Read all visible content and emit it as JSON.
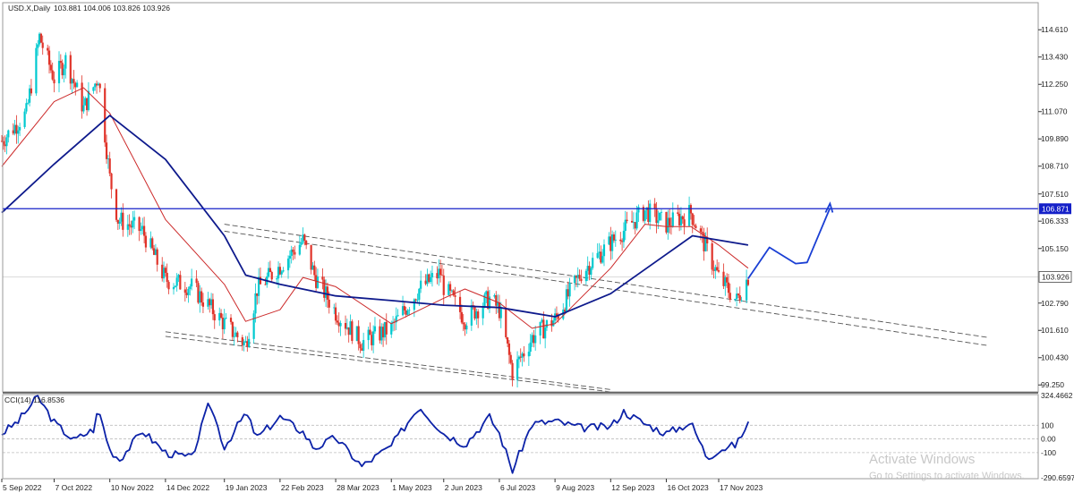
{
  "header": {
    "symbol": "USD.X,Daily",
    "ohlc": "103.881 104.006 103.826 103.926"
  },
  "indicator": {
    "label": "CCI(14) 116.8536",
    "scale": [
      "324.4662",
      "100",
      "0.00",
      "-100",
      "-290.6597"
    ]
  },
  "watermark": {
    "line1": "Activate Windows",
    "line2": "Go to Settings to activate Windows."
  },
  "colors": {
    "bull_candle": "#00c9cf",
    "bear_candle": "#e0342a",
    "ma_slow": "#0e1a8c",
    "ma_fast": "#cc2a2a",
    "resistance": "#1420c8",
    "cci": "#0c22a8",
    "projection": "#1a3fd4",
    "channel": "#555555"
  },
  "chart_data": [
    {
      "type": "candlestick",
      "title": "USD.X,Daily",
      "y_ticks": [
        "114.610",
        "113.430",
        "112.250",
        "111.070",
        "109.890",
        "108.710",
        "107.510",
        "106.333",
        "105.150",
        "103.926",
        "102.790",
        "101.610",
        "100.430",
        "99.250"
      ],
      "x_ticks": [
        "5 Sep 2022",
        "7 Oct 2022",
        "10 Nov 2022",
        "14 Dec 2022",
        "19 Jan 2023",
        "22 Feb 2023",
        "28 Mar 2023",
        "1 May 2023",
        "2 Jun 2023",
        "6 Jul 2023",
        "9 Aug 2023",
        "12 Sep 2023",
        "16 Oct 2023",
        "17 Nov 2023"
      ],
      "ylim": [
        98.95,
        115.2
      ],
      "last_price": 103.926,
      "resistance_level": 106.871,
      "close_path": [
        [
          "5 Sep 2022",
          109.8
        ],
        [
          "20 Sep 2022",
          111.0
        ],
        [
          "28 Sep 2022",
          114.3
        ],
        [
          "7 Oct 2022",
          112.5
        ],
        [
          "14 Oct 2022",
          113.3
        ],
        [
          "25 Oct 2022",
          111.2
        ],
        [
          "3 Nov 2022",
          112.6
        ],
        [
          "10 Nov 2022",
          108.2
        ],
        [
          "15 Nov 2022",
          106.4
        ],
        [
          "30 Nov 2022",
          105.9
        ],
        [
          "14 Dec 2022",
          103.8
        ],
        [
          "30 Dec 2022",
          103.5
        ],
        [
          "19 Jan 2023",
          101.9
        ],
        [
          "1 Feb 2023",
          101.0
        ],
        [
          "8 Feb 2023",
          103.4
        ],
        [
          "22 Feb 2023",
          104.4
        ],
        [
          "8 Mar 2023",
          105.5
        ],
        [
          "15 Mar 2023",
          104.0
        ],
        [
          "28 Mar 2023",
          102.4
        ],
        [
          "13 Apr 2023",
          101.1
        ],
        [
          "1 May 2023",
          101.7
        ],
        [
          "18 May 2023",
          103.4
        ],
        [
          "31 May 2023",
          104.1
        ],
        [
          "2 Jun 2023",
          103.5
        ],
        [
          "15 Jun 2023",
          102.1
        ],
        [
          "30 Jun 2023",
          103.0
        ],
        [
          "6 Jul 2023",
          102.5
        ],
        [
          "14 Jul 2023",
          99.8
        ],
        [
          "26 Jul 2023",
          101.3
        ],
        [
          "9 Aug 2023",
          102.1
        ],
        [
          "25 Aug 2023",
          104.1
        ],
        [
          "12 Sep 2023",
          105.4
        ],
        [
          "3 Oct 2023",
          106.8
        ],
        [
          "16 Oct 2023",
          106.2
        ],
        [
          "31 Oct 2023",
          106.7
        ],
        [
          "17 Nov 2023",
          103.9
        ],
        [
          "28 Nov 2023",
          102.9
        ],
        [
          "5 Dec 2023",
          103.926
        ]
      ],
      "ma_fast": [
        [
          "5 Sep 2022",
          108.7
        ],
        [
          "7 Oct 2022",
          111.5
        ],
        [
          "25 Oct 2022",
          112.1
        ],
        [
          "10 Nov 2022",
          111.0
        ],
        [
          "14 Dec 2022",
          106.4
        ],
        [
          "19 Jan 2023",
          103.6
        ],
        [
          "1 Feb 2023",
          102.0
        ],
        [
          "22 Feb 2023",
          102.5
        ],
        [
          "8 Mar 2023",
          103.9
        ],
        [
          "28 Mar 2023",
          103.5
        ],
        [
          "1 May 2023",
          101.9
        ],
        [
          "2 Jun 2023",
          103.0
        ],
        [
          "15 Jun 2023",
          103.4
        ],
        [
          "6 Jul 2023",
          102.8
        ],
        [
          "26 Jul 2023",
          101.7
        ],
        [
          "9 Aug 2023",
          101.9
        ],
        [
          "12 Sep 2023",
          104.3
        ],
        [
          "3 Oct 2023",
          106.2
        ],
        [
          "16 Oct 2023",
          106.1
        ],
        [
          "31 Oct 2023",
          106.1
        ],
        [
          "17 Nov 2023",
          105.3
        ],
        [
          "5 Dec 2023",
          104.3
        ]
      ],
      "ma_slow": [
        [
          "5 Sep 2022",
          106.7
        ],
        [
          "7 Oct 2022",
          108.8
        ],
        [
          "10 Nov 2022",
          110.9
        ],
        [
          "14 Dec 2022",
          109.0
        ],
        [
          "19 Jan 2023",
          105.7
        ],
        [
          "1 Feb 2023",
          104.0
        ],
        [
          "22 Feb 2023",
          103.6
        ],
        [
          "28 Mar 2023",
          103.1
        ],
        [
          "1 May 2023",
          102.9
        ],
        [
          "2 Jun 2023",
          102.7
        ],
        [
          "6 Jul 2023",
          102.6
        ],
        [
          "9 Aug 2023",
          102.2
        ],
        [
          "12 Sep 2023",
          103.2
        ],
        [
          "16 Oct 2023",
          104.9
        ],
        [
          "1 Nov 2023",
          105.7
        ],
        [
          "5 Dec 2023",
          105.3
        ]
      ],
      "cci_14": [
        [
          "5 Sep 2022",
          40
        ],
        [
          "15 Sep 2022",
          130
        ],
        [
          "27 Sep 2022",
          310
        ],
        [
          "7 Oct 2022",
          120
        ],
        [
          "19 Oct 2022",
          -10
        ],
        [
          "31 Oct 2022",
          70
        ],
        [
          "3 Nov 2022",
          220
        ],
        [
          "10 Nov 2022",
          -80
        ],
        [
          "16 Nov 2022",
          -150
        ],
        [
          "30 Nov 2022",
          60
        ],
        [
          "14 Dec 2022",
          -100
        ],
        [
          "30 Dec 2022",
          -140
        ],
        [
          "10 Jan 2023",
          270
        ],
        [
          "19 Jan 2023",
          -60
        ],
        [
          "1 Feb 2023",
          190
        ],
        [
          "8 Feb 2023",
          10
        ],
        [
          "22 Feb 2023",
          160
        ],
        [
          "8 Mar 2023",
          50
        ],
        [
          "15 Mar 2023",
          -70
        ],
        [
          "28 Mar 2023",
          10
        ],
        [
          "13 Apr 2023",
          -200
        ],
        [
          "1 May 2023",
          -50
        ],
        [
          "18 May 2023",
          240
        ],
        [
          "2 Jun 2023",
          40
        ],
        [
          "15 Jun 2023",
          -40
        ],
        [
          "30 Jun 2023",
          160
        ],
        [
          "6 Jul 2023",
          40
        ],
        [
          "14 Jul 2023",
          -230
        ],
        [
          "26 Jul 2023",
          110
        ],
        [
          "9 Aug 2023",
          130
        ],
        [
          "25 Aug 2023",
          80
        ],
        [
          "12 Sep 2023",
          90
        ],
        [
          "20 Sep 2023",
          200
        ],
        [
          "3 Oct 2023",
          110
        ],
        [
          "16 Oct 2023",
          40
        ],
        [
          "31 Oct 2023",
          120
        ],
        [
          "10 Nov 2023",
          -140
        ],
        [
          "17 Nov 2023",
          -80
        ],
        [
          "28 Nov 2023",
          -40
        ],
        [
          "5 Dec 2023",
          116.8536
        ]
      ],
      "cci_levels": [
        100,
        0,
        -100
      ],
      "cci_ylim": [
        -290.6597,
        324.4662
      ]
    }
  ]
}
